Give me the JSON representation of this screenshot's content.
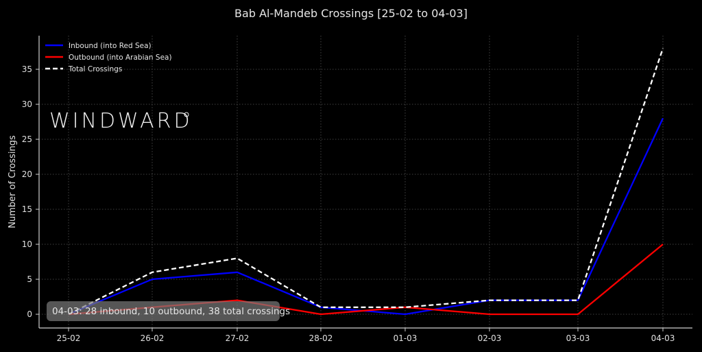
{
  "chart_data": {
    "type": "line",
    "title": "Bab Al-Mandeb Crossings [25-02 to 04-03]",
    "xlabel": "",
    "ylabel": "Number of Crossings",
    "categories": [
      "25-02",
      "26-02",
      "27-02",
      "28-02",
      "01-03",
      "02-03",
      "03-03",
      "04-03"
    ],
    "series": [
      {
        "name": "Inbound (into Red Sea)",
        "color": "#0000ff",
        "style": "solid",
        "values": [
          0,
          5,
          6,
          1,
          0,
          2,
          2,
          28
        ]
      },
      {
        "name": "Outbound (into Arabian Sea)",
        "color": "#ff0000",
        "style": "solid",
        "values": [
          0,
          1,
          2,
          0,
          1,
          0,
          0,
          10
        ]
      },
      {
        "name": "Total Crossings",
        "color": "#ffffff",
        "style": "dashed",
        "values": [
          0,
          6,
          8,
          1,
          1,
          2,
          2,
          38
        ]
      }
    ],
    "yticks": [
      0,
      5,
      10,
      15,
      20,
      25,
      30,
      35
    ],
    "ylim": [
      -1.9,
      39.8
    ],
    "grid": true,
    "legend_position": "upper left",
    "annotation": "04-03: 28 inbound, 10 outbound, 38 total crossings",
    "watermark": "WINDWARD°"
  },
  "title": "Bab Al-Mandeb Crossings [25-02 to 04-03]",
  "ylabel": "Number of Crossings",
  "legend": {
    "inbound": "Inbound (into Red Sea)",
    "outbound": "Outbound (into Arabian Sea)",
    "total": "Total Crossings"
  },
  "annotation": "04-03: 28 inbound, 10 outbound, 38 total crossings",
  "watermark": "WINDWARD",
  "xticks": [
    "25-02",
    "26-02",
    "27-02",
    "28-02",
    "01-03",
    "02-03",
    "03-03",
    "04-03"
  ],
  "yticks": [
    "0",
    "5",
    "10",
    "15",
    "20",
    "25",
    "30",
    "35"
  ]
}
